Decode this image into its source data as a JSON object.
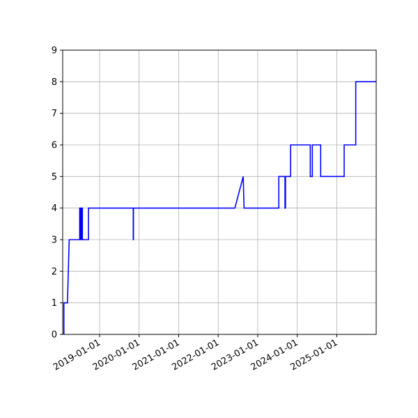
{
  "chart_data": {
    "type": "line",
    "title": "",
    "xlabel": "",
    "ylabel": "",
    "x_axis": "date",
    "xlim": [
      "2018-01-25",
      "2025-12-31"
    ],
    "ylim": [
      0,
      9
    ],
    "grid": true,
    "legend": "none",
    "colors": {
      "line": "#0000ff",
      "grid": "#b0b0b0",
      "axes": "#000000"
    },
    "x_ticks": [
      "2019-01-01",
      "2020-01-01",
      "2021-01-01",
      "2022-01-01",
      "2023-01-01",
      "2024-01-01",
      "2025-01-01"
    ],
    "y_ticks": [
      0,
      1,
      2,
      3,
      4,
      5,
      6,
      7,
      8,
      9
    ],
    "series": [
      {
        "name": "",
        "color": "#0000ff",
        "points": [
          {
            "x": "2018-02-05",
            "y": 0
          },
          {
            "x": "2018-02-05",
            "y": 1
          },
          {
            "x": "2018-03-10",
            "y": 1
          },
          {
            "x": "2018-03-26",
            "y": 3
          },
          {
            "x": "2018-07-01",
            "y": 3
          },
          {
            "x": "2018-07-01",
            "y": 4
          },
          {
            "x": "2018-07-11",
            "y": 4
          },
          {
            "x": "2018-07-11",
            "y": 3
          },
          {
            "x": "2018-07-16",
            "y": 3
          },
          {
            "x": "2018-07-16",
            "y": 4
          },
          {
            "x": "2018-07-26",
            "y": 4
          },
          {
            "x": "2018-07-26",
            "y": 3
          },
          {
            "x": "2018-09-20",
            "y": 3
          },
          {
            "x": "2018-09-20",
            "y": 4
          },
          {
            "x": "2019-11-08",
            "y": 4
          },
          {
            "x": "2019-11-08",
            "y": 3
          },
          {
            "x": "2019-11-10",
            "y": 3
          },
          {
            "x": "2019-11-10",
            "y": 4
          },
          {
            "x": "2022-06-04",
            "y": 4
          },
          {
            "x": "2022-08-20",
            "y": 5
          },
          {
            "x": "2022-08-28",
            "y": 4
          },
          {
            "x": "2023-07-15",
            "y": 4
          },
          {
            "x": "2023-07-15",
            "y": 5
          },
          {
            "x": "2023-09-10",
            "y": 5
          },
          {
            "x": "2023-09-10",
            "y": 4
          },
          {
            "x": "2023-09-15",
            "y": 4
          },
          {
            "x": "2023-09-15",
            "y": 5
          },
          {
            "x": "2023-11-01",
            "y": 5
          },
          {
            "x": "2023-11-01",
            "y": 6
          },
          {
            "x": "2024-05-01",
            "y": 6
          },
          {
            "x": "2024-05-01",
            "y": 5
          },
          {
            "x": "2024-05-20",
            "y": 5
          },
          {
            "x": "2024-05-20",
            "y": 6
          },
          {
            "x": "2024-08-05",
            "y": 6
          },
          {
            "x": "2024-08-05",
            "y": 5
          },
          {
            "x": "2025-03-10",
            "y": 5
          },
          {
            "x": "2025-03-10",
            "y": 6
          },
          {
            "x": "2025-06-25",
            "y": 6
          },
          {
            "x": "2025-06-25",
            "y": 8
          },
          {
            "x": "2025-12-31",
            "y": 8
          }
        ]
      }
    ]
  }
}
